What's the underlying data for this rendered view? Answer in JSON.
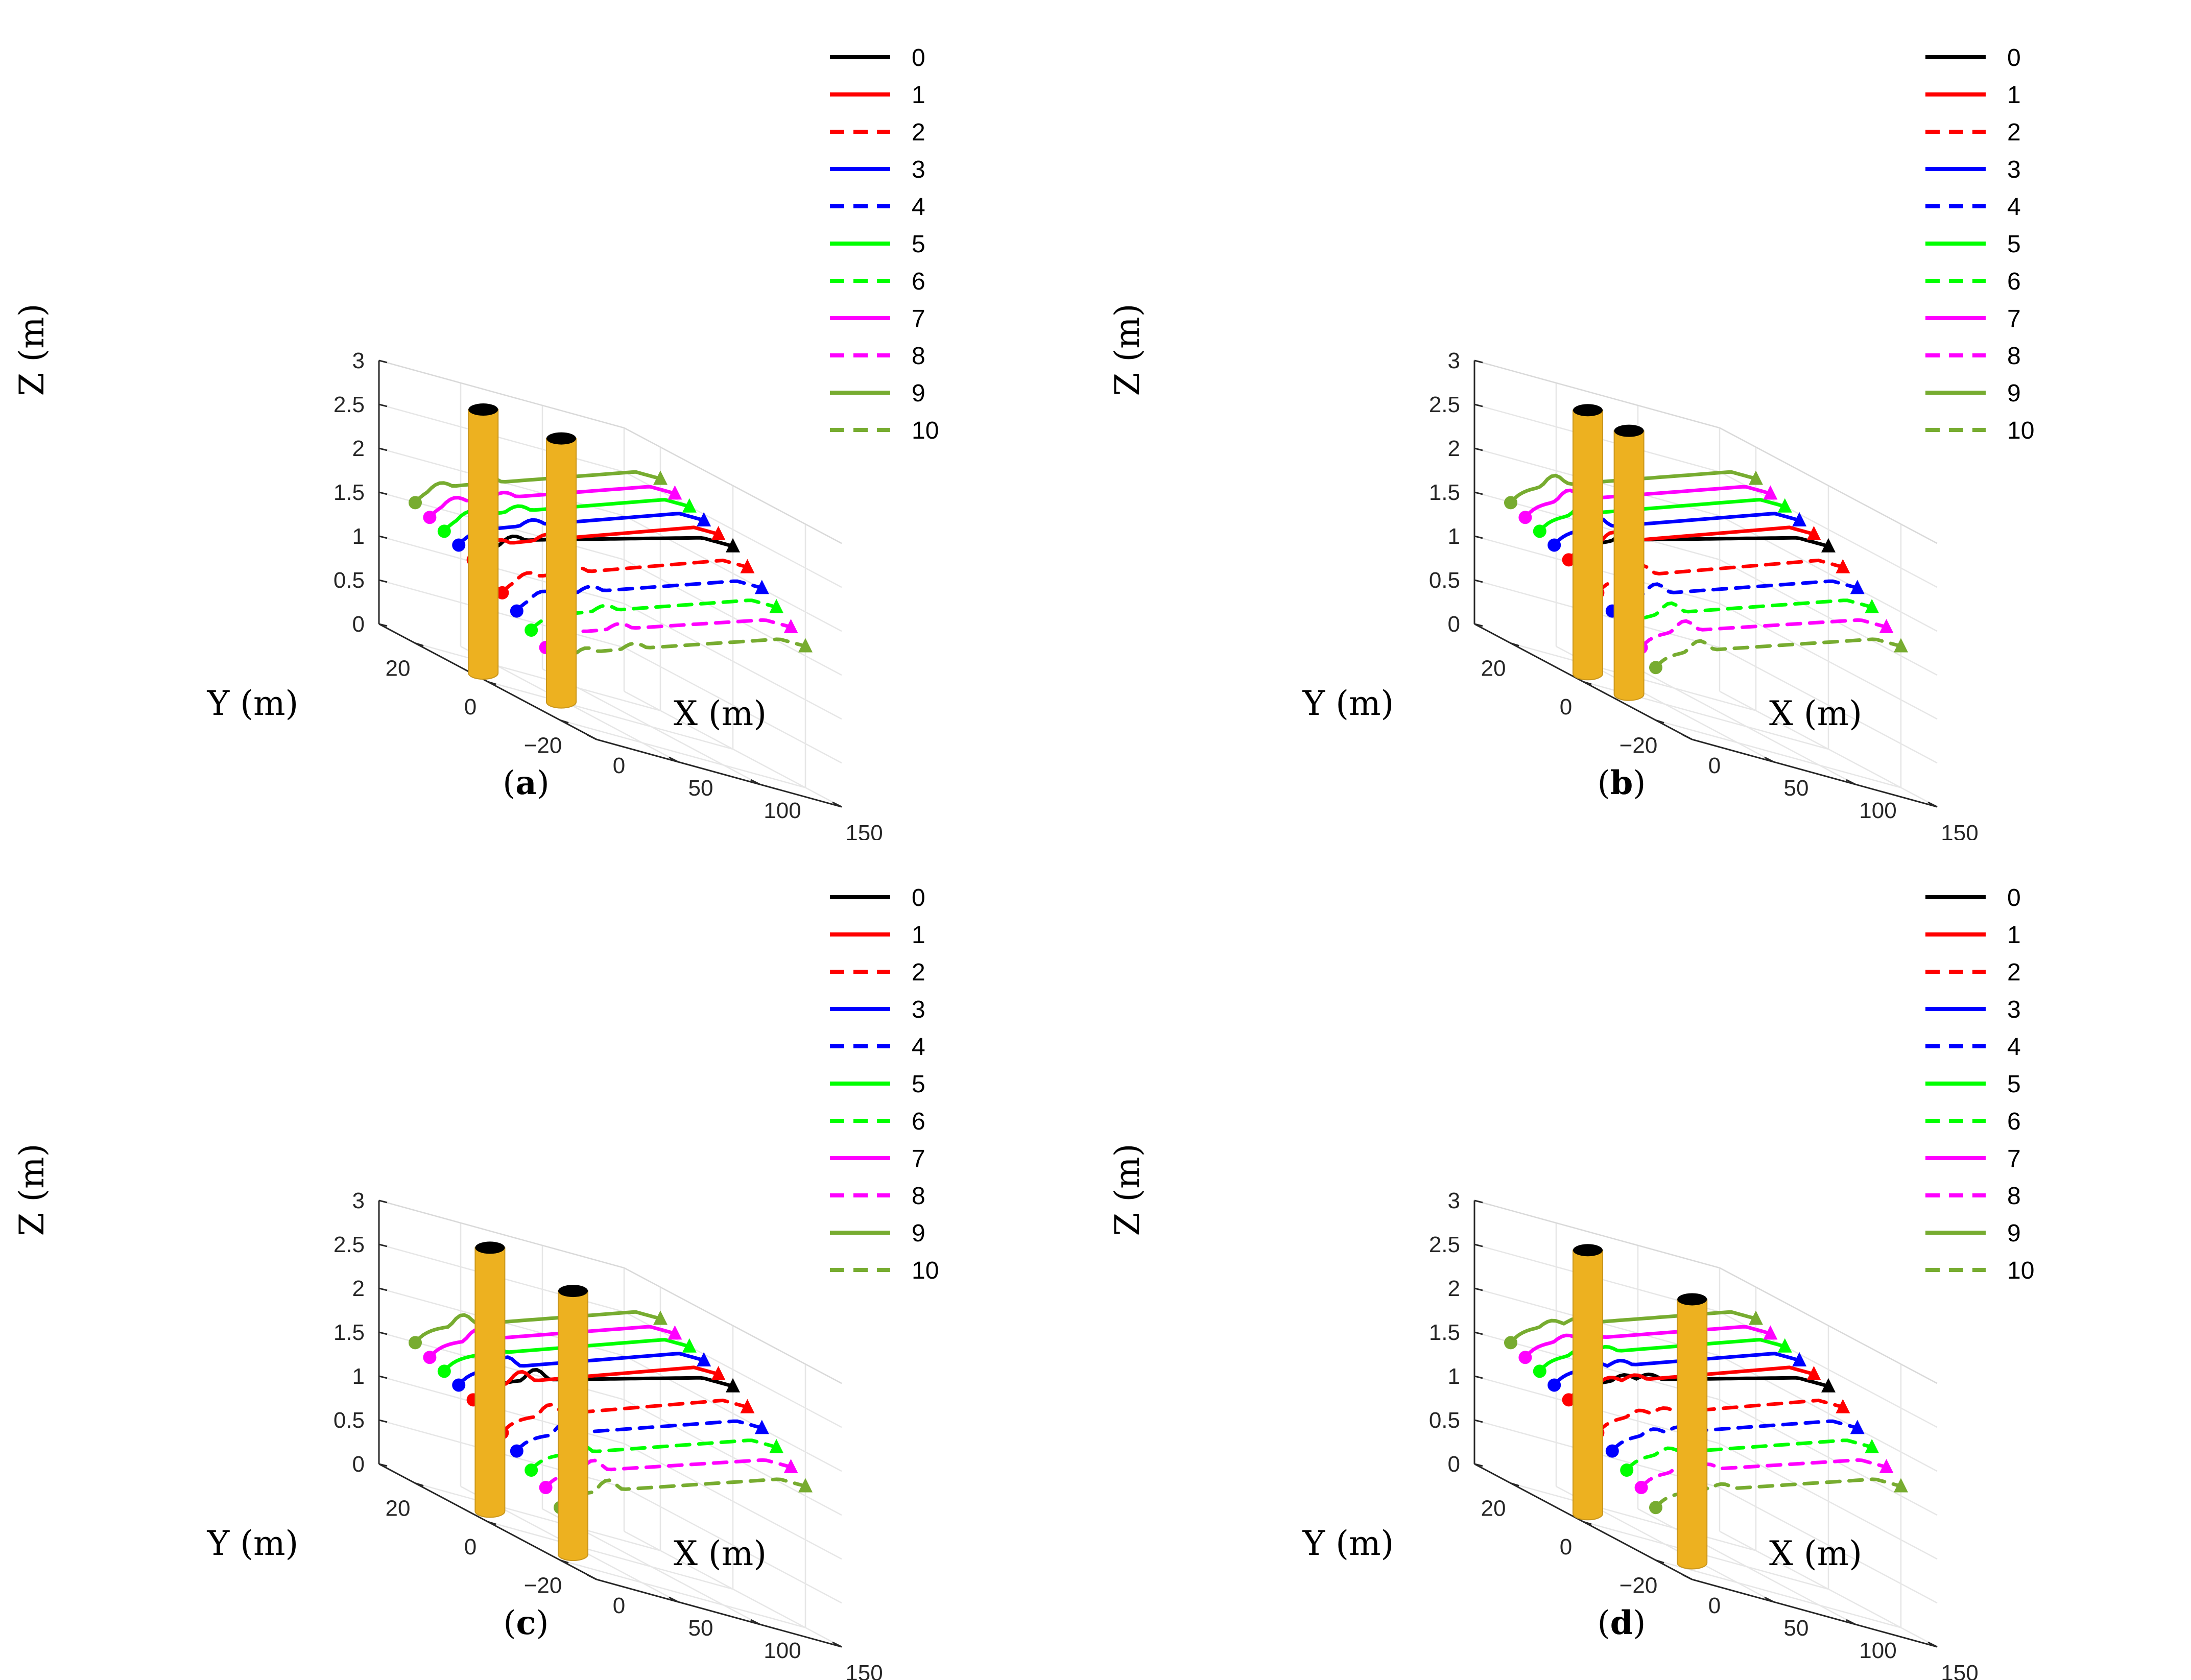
{
  "chart_data": [
    {
      "panel": "a",
      "caption_letter": "a",
      "type": "line",
      "title": "",
      "xlabel": "X (m)",
      "ylabel": "Y (m)",
      "zlabel": "Z (m)",
      "xlim": [
        0,
        150
      ],
      "ylim": [
        -30,
        30
      ],
      "zlim": [
        0,
        3
      ],
      "xticks": [
        "0",
        "50",
        "100",
        "150"
      ],
      "yticks": [
        "−20",
        "0",
        "20"
      ],
      "zticks": [
        "0",
        "0.5",
        "1",
        "1.5",
        "2",
        "2.5",
        "3"
      ],
      "obstacles": [
        {
          "name": "cylinder-1",
          "x": 15,
          "y": 8,
          "z_bottom": 0,
          "z_top": 3
        },
        {
          "name": "cylinder-2",
          "x": 45,
          "y": 0,
          "z_bottom": 0,
          "z_top": 3
        }
      ]
    },
    {
      "panel": "b",
      "caption_letter": "b",
      "type": "line",
      "title": "",
      "xlabel": "X (m)",
      "ylabel": "Y (m)",
      "zlabel": "Z (m)",
      "xlim": [
        0,
        150
      ],
      "ylim": [
        -30,
        30
      ],
      "zlim": [
        0,
        3
      ],
      "xticks": [
        "0",
        "50",
        "100",
        "150"
      ],
      "yticks": [
        "−20",
        "0",
        "20"
      ],
      "zticks": [
        "0",
        "0.5",
        "1",
        "1.5",
        "2",
        "2.5",
        "3"
      ],
      "obstacles": [
        {
          "name": "cylinder-1",
          "x": 25,
          "y": 10,
          "z_bottom": 0,
          "z_top": 3
        },
        {
          "name": "cylinder-2",
          "x": 28,
          "y": 0,
          "z_bottom": 0,
          "z_top": 3
        }
      ]
    },
    {
      "panel": "c",
      "caption_letter": "c",
      "type": "line",
      "title": "",
      "xlabel": "X (m)",
      "ylabel": "Y (m)",
      "zlabel": "Z (m)",
      "xlim": [
        0,
        150
      ],
      "ylim": [
        -30,
        30
      ],
      "zlim": [
        0,
        3
      ],
      "xticks": [
        "0",
        "50",
        "100",
        "150"
      ],
      "yticks": [
        "−20",
        "0",
        "20"
      ],
      "zticks": [
        "0",
        "0.5",
        "1",
        "1.5",
        "2",
        "2.5",
        "3"
      ],
      "obstacles": [
        {
          "name": "cylinder-1",
          "x": 28,
          "y": 12,
          "z_bottom": 0,
          "z_top": 3
        },
        {
          "name": "cylinder-2",
          "x": 30,
          "y": -10,
          "z_bottom": 0,
          "z_top": 3
        }
      ]
    },
    {
      "panel": "d",
      "caption_letter": "d",
      "type": "line",
      "title": "",
      "xlabel": "X (m)",
      "ylabel": "Y (m)",
      "zlabel": "Z (m)",
      "xlim": [
        0,
        150
      ],
      "ylim": [
        -30,
        30
      ],
      "zlim": [
        0,
        3
      ],
      "xticks": [
        "0",
        "50",
        "100",
        "150"
      ],
      "yticks": [
        "−20",
        "0",
        "20"
      ],
      "zticks": [
        "0",
        "0.5",
        "1",
        "1.5",
        "2",
        "2.5",
        "3"
      ],
      "obstacles": [
        {
          "name": "cylinder-1",
          "x": 25,
          "y": 10,
          "z_bottom": 0,
          "z_top": 3
        },
        {
          "name": "cylinder-2",
          "x": 40,
          "y": -12,
          "z_bottom": 0,
          "z_top": 3
        }
      ]
    }
  ],
  "series": [
    {
      "name": "0",
      "color": "#000000",
      "dash": "solid",
      "y": 0,
      "z_start": 1.45,
      "z_end": 2.25
    },
    {
      "name": "1",
      "color": "#ff0000",
      "dash": "solid",
      "y": 4,
      "z_start": 1.3,
      "z_end": 2.3
    },
    {
      "name": "2",
      "color": "#ff0000",
      "dash": "dashed",
      "y": -4,
      "z_start": 1.1,
      "z_end": 2.1
    },
    {
      "name": "3",
      "color": "#0000ff",
      "dash": "solid",
      "y": 8,
      "z_start": 1.38,
      "z_end": 2.37
    },
    {
      "name": "4",
      "color": "#0000ff",
      "dash": "dashed",
      "y": -8,
      "z_start": 0.98,
      "z_end": 1.95
    },
    {
      "name": "5",
      "color": "#00ff00",
      "dash": "solid",
      "y": 12,
      "z_start": 1.45,
      "z_end": 2.44
    },
    {
      "name": "6",
      "color": "#00ff00",
      "dash": "dashed",
      "y": -12,
      "z_start": 0.85,
      "z_end": 1.82
    },
    {
      "name": "7",
      "color": "#ff00ff",
      "dash": "solid",
      "y": 16,
      "z_start": 1.52,
      "z_end": 2.5
    },
    {
      "name": "8",
      "color": "#ff00ff",
      "dash": "dashed",
      "y": -16,
      "z_start": 0.74,
      "z_end": 1.68
    },
    {
      "name": "9",
      "color": "#77ac30",
      "dash": "solid",
      "y": 20,
      "z_start": 1.6,
      "z_end": 2.58
    },
    {
      "name": "10",
      "color": "#77ac30",
      "dash": "dashed",
      "y": -20,
      "z_start": 0.6,
      "z_end": 1.55
    }
  ],
  "legend": {
    "location": "top-right"
  },
  "colors": {
    "obstacle": "#edb120",
    "obstacle_top": "#000000",
    "grid": "#e6e6e6",
    "axis": "#262626"
  }
}
